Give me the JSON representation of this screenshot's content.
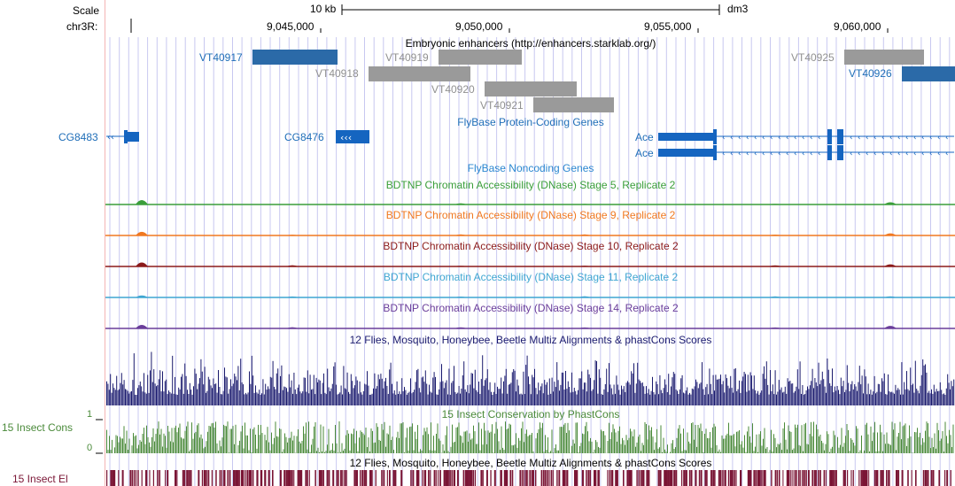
{
  "browser": {
    "scale_label": "Scale",
    "scale_value": "10 kb",
    "assembly": "dm3",
    "chrom_label": "chr3R:",
    "positions": [
      "9,045,000",
      "9,050,000",
      "9,055,000",
      "9,060,000"
    ]
  },
  "tracks": {
    "enhancers": {
      "title": "Embryonic enhancers (http://enhancers.starklab.org/)",
      "items": [
        "VT40917",
        "VT40919",
        "VT40918",
        "VT40920",
        "VT40921",
        "VT40925",
        "VT40926"
      ]
    },
    "flybase_coding": {
      "title": "FlyBase Protein-Coding Genes",
      "genes": [
        "CG8483",
        "CG8476",
        "Ace",
        "Ace"
      ]
    },
    "flybase_noncoding": {
      "title": "FlyBase Noncoding Genes"
    },
    "dnase": [
      {
        "title": "BDTNP Chromatin Accessibility (DNase) Stage 5, Replicate 2",
        "color": "#3a9e3a"
      },
      {
        "title": "BDTNP Chromatin Accessibility (DNase) Stage 9, Replicate 2",
        "color": "#f07820"
      },
      {
        "title": "BDTNP Chromatin Accessibility (DNase) Stage 10, Replicate 2",
        "color": "#8b1a1a"
      },
      {
        "title": "BDTNP Chromatin Accessibility (DNase) Stage 11, Replicate 2",
        "color": "#3fa6d2"
      },
      {
        "title": "BDTNP Chromatin Accessibility (DNase) Stage 14, Replicate 2",
        "color": "#6a3d9a"
      }
    ],
    "multiz": {
      "title": "12 Flies, Mosquito, Honeybee, Beetle Multiz Alignments & phastCons Scores",
      "color": "#1a1a6e"
    },
    "phastcons": {
      "title": "15 Insect Conservation by PhastCons",
      "side_label": "15 Insect Cons",
      "y_max": "1",
      "y_min": "0",
      "color": "#4a8a3a"
    },
    "elements": {
      "title": "12 Flies, Mosquito, Honeybee, Beetle Multiz Alignments & phastCons Scores",
      "side_label": "15 Insect El",
      "color": "#7a1535"
    }
  },
  "colors": {
    "enhancer_selected": "#2b6aa8",
    "enhancer_default": "#9a9a9a",
    "gene": "#1565c0",
    "gridline": "#c8c8f0"
  }
}
